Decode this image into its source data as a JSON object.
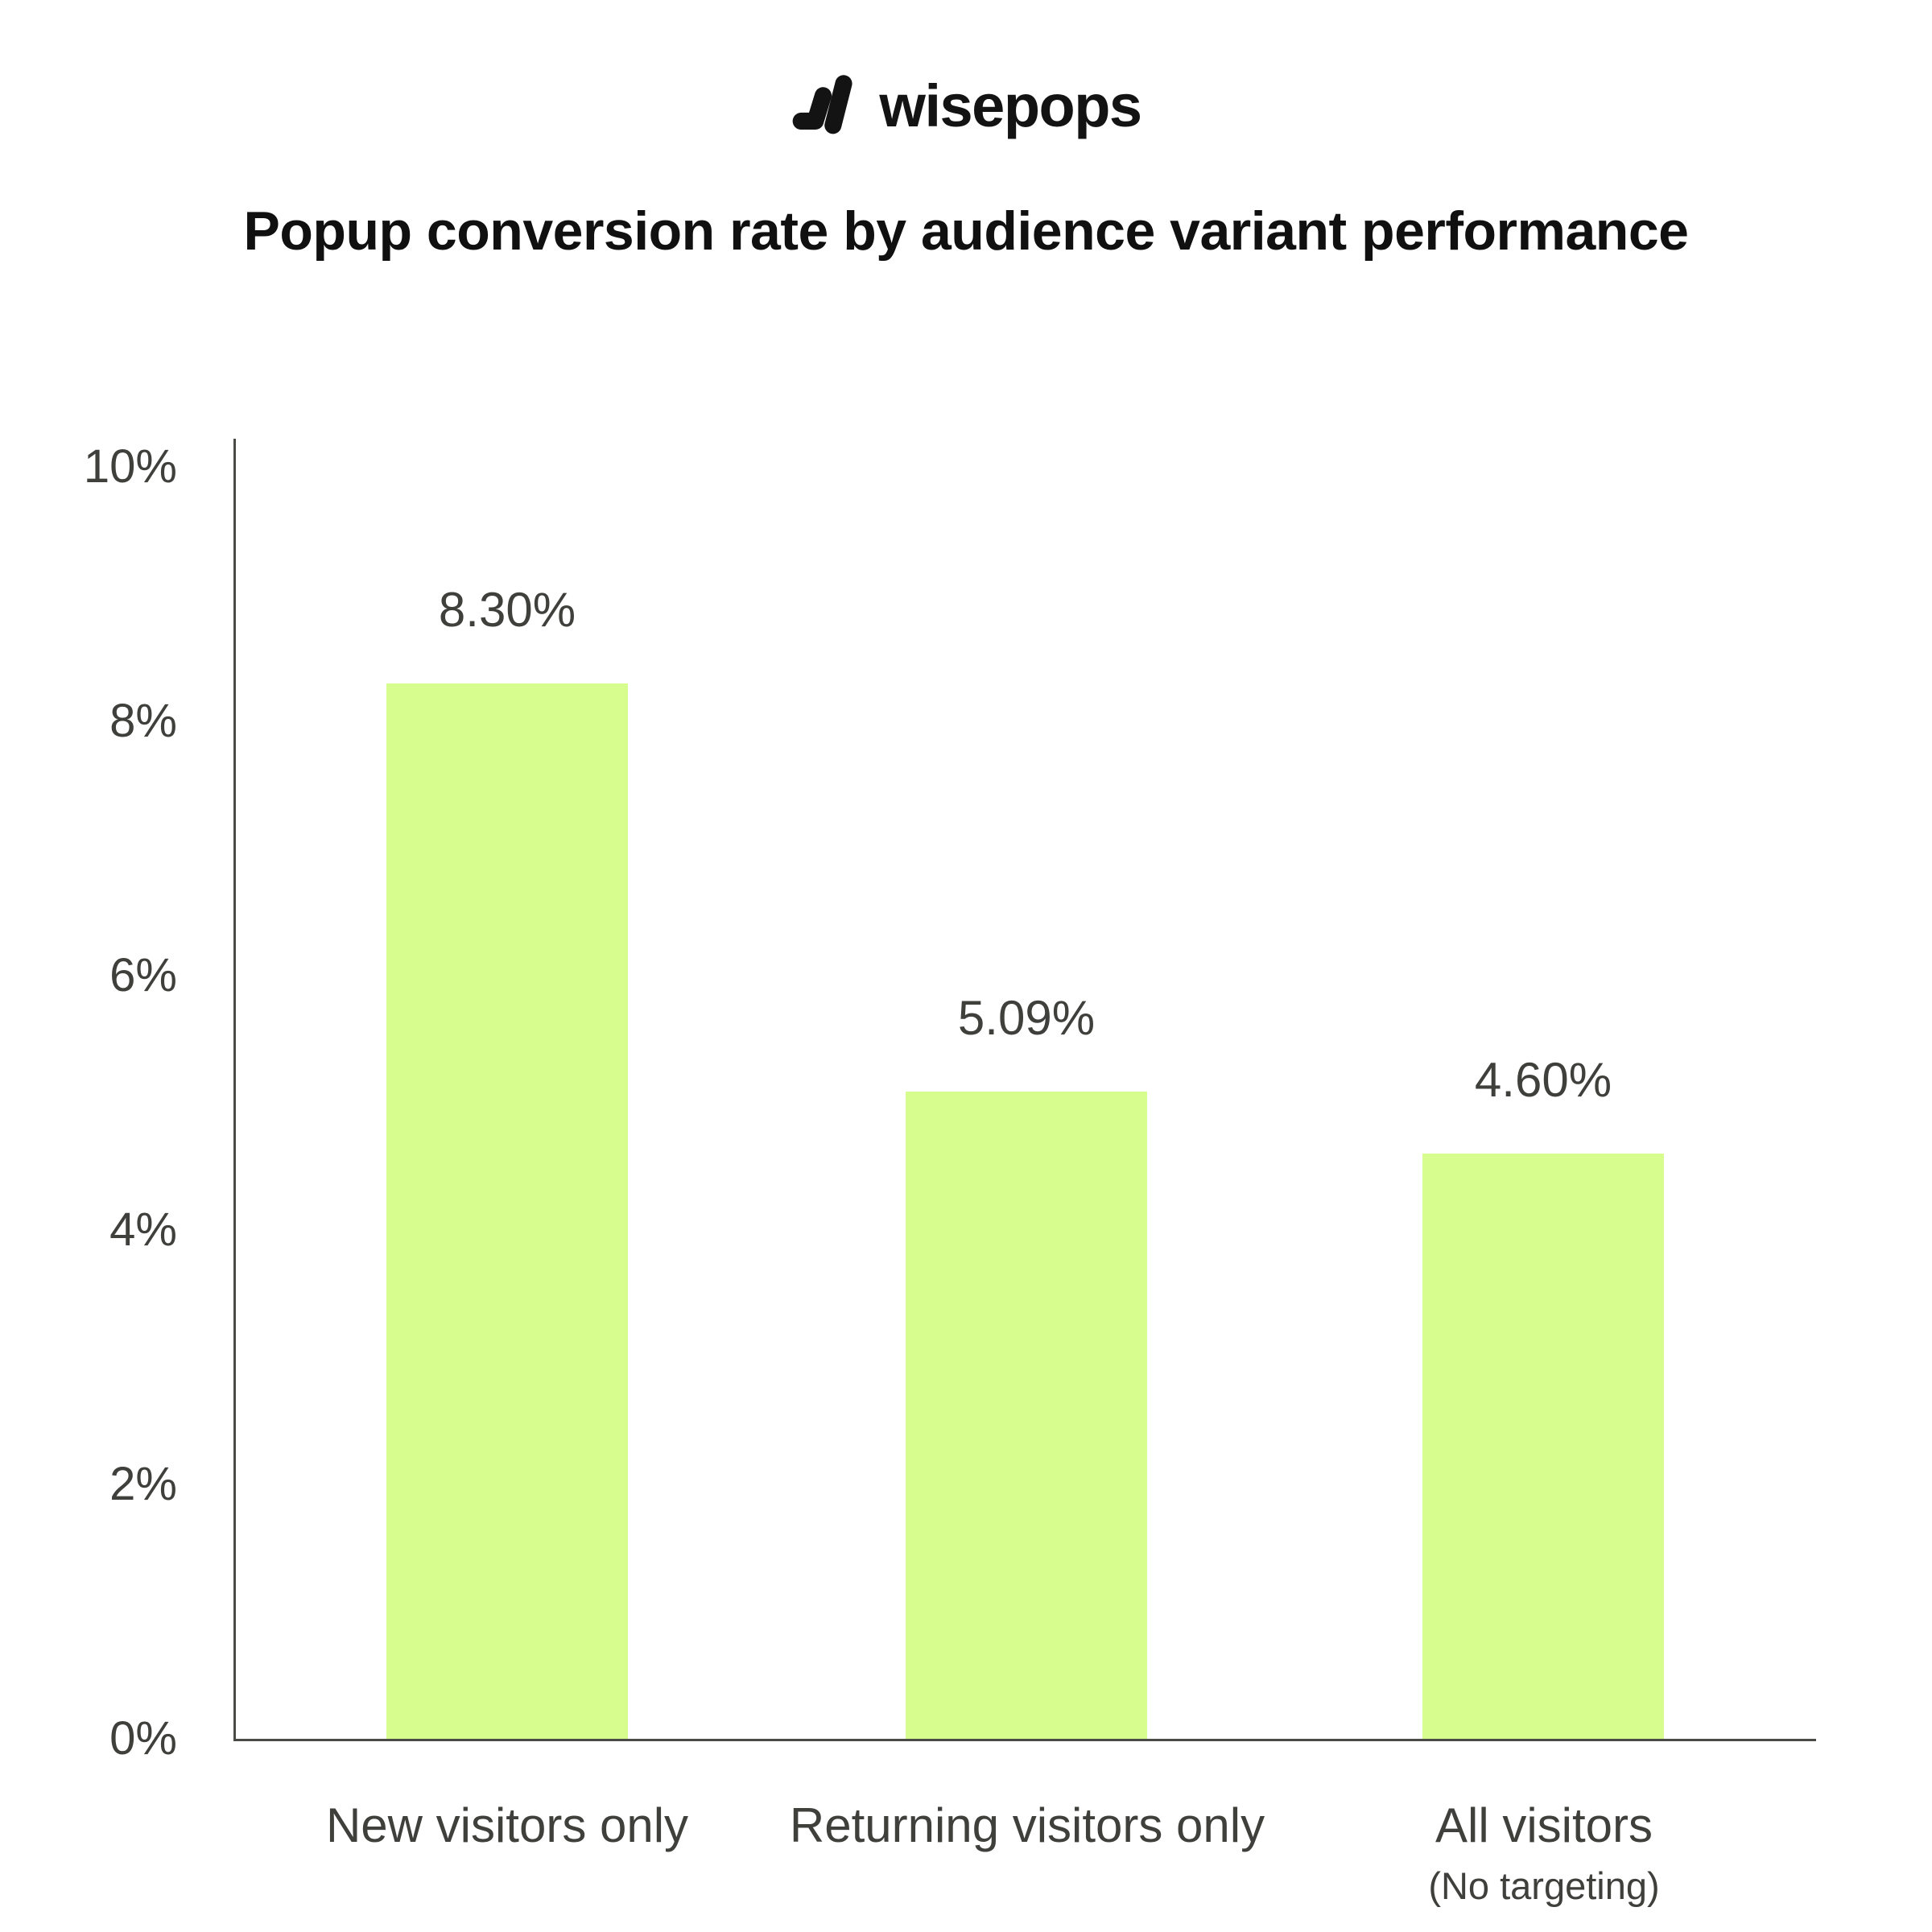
{
  "brand": {
    "name": "wisepops",
    "logo_icon": "wisepops-logo-mark",
    "logo_color": "#131313"
  },
  "chart_data": {
    "type": "bar",
    "title": "Popup conversion rate by audience variant performance",
    "categories": [
      "New visitors only",
      "Returning visitors only",
      "All visitors"
    ],
    "category_sublabels": [
      "",
      "",
      "(No targeting)"
    ],
    "values": [
      8.3,
      5.09,
      4.6
    ],
    "value_labels": [
      "8.30%",
      "5.09%",
      "4.60%"
    ],
    "xlabel": "",
    "ylabel": "",
    "ylim": [
      0,
      10
    ],
    "yticks": [
      0,
      2,
      4,
      6,
      8,
      10
    ],
    "ytick_labels": [
      "0%",
      "2%",
      "4%",
      "6%",
      "8%",
      "10%"
    ],
    "grid": "off",
    "legend": "none",
    "bar_color": "#d6fd8d",
    "axis_color": "#4a4a47",
    "label_color": "#3f3f3c",
    "title_color": "#101010",
    "background_color": "#ffffff"
  }
}
